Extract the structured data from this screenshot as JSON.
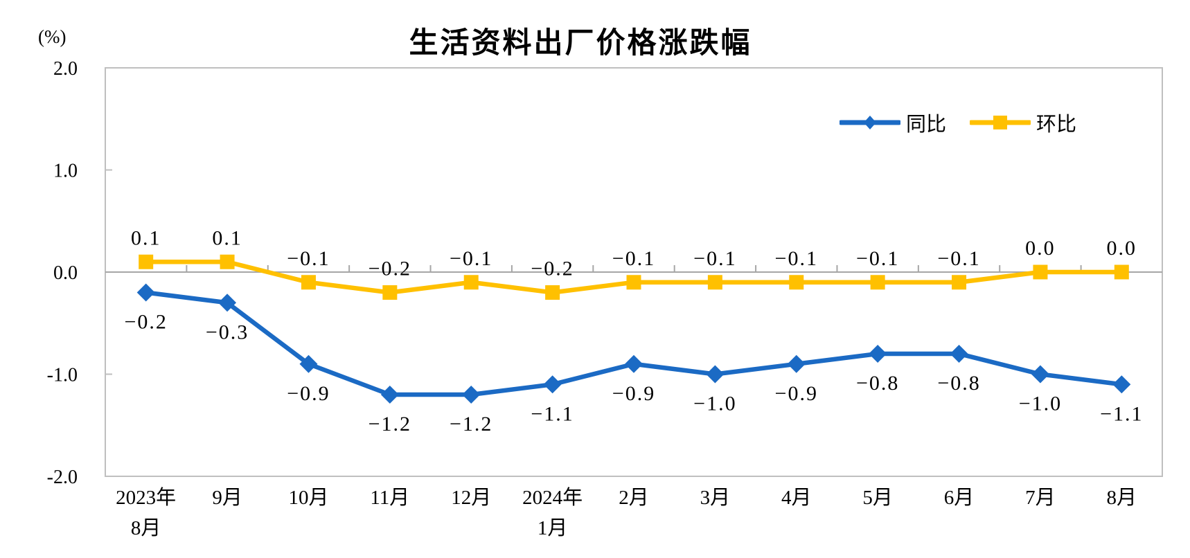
{
  "chart_data": {
    "type": "line",
    "title": "生活资料出厂价格涨跌幅",
    "y_unit": "(%)",
    "categories": [
      "2023年8月",
      "9月",
      "10月",
      "11月",
      "12月",
      "2024年1月",
      "2月",
      "3月",
      "4月",
      "5月",
      "6月",
      "7月",
      "8月"
    ],
    "category_lines": [
      [
        "2023年",
        "8月"
      ],
      [
        "9月"
      ],
      [
        "10月"
      ],
      [
        "11月"
      ],
      [
        "12月"
      ],
      [
        "2024年",
        "1月"
      ],
      [
        "2月"
      ],
      [
        "3月"
      ],
      [
        "4月"
      ],
      [
        "5月"
      ],
      [
        "6月"
      ],
      [
        "7月"
      ],
      [
        "8月"
      ]
    ],
    "series": [
      {
        "name": "同比",
        "marker": "diamond",
        "color": "#1B6AC4",
        "values": [
          -0.2,
          -0.3,
          -0.9,
          -1.2,
          -1.2,
          -1.1,
          -0.9,
          -1.0,
          -0.9,
          -0.8,
          -0.8,
          -1.0,
          -1.1
        ],
        "labels": [
          "−0.2",
          "−0.3",
          "−0.9",
          "−1.2",
          "−1.2",
          "−1.1",
          "−0.9",
          "−1.0",
          "−0.9",
          "−0.8",
          "−0.8",
          "−1.0",
          "−1.1"
        ],
        "label_side": "below"
      },
      {
        "name": "环比",
        "marker": "square",
        "color": "#FFC000",
        "values": [
          0.1,
          0.1,
          -0.1,
          -0.2,
          -0.1,
          -0.2,
          -0.1,
          -0.1,
          -0.1,
          -0.1,
          -0.1,
          0.0,
          0.0
        ],
        "labels": [
          "0.1",
          "0.1",
          "−0.1",
          "−0.2",
          "−0.1",
          "−0.2",
          "−0.1",
          "−0.1",
          "−0.1",
          "−0.1",
          "−0.1",
          "0.0",
          "0.0"
        ],
        "label_side": "above"
      }
    ],
    "y_ticks": [
      {
        "label": "2.0",
        "value": 2
      },
      {
        "label": "1.0",
        "value": 1
      },
      {
        "label": "0.0",
        "value": 0
      },
      {
        "label": "-1.0",
        "value": -1
      },
      {
        "label": "-2.0",
        "value": -2
      }
    ],
    "ylim": [
      -2,
      2
    ],
    "grid": "zero-line-only",
    "legend_position": "top-right-inside",
    "colors": {
      "border": "#BFBFBF",
      "zero_axis": "#A6A6A6",
      "text": "#000000"
    }
  }
}
